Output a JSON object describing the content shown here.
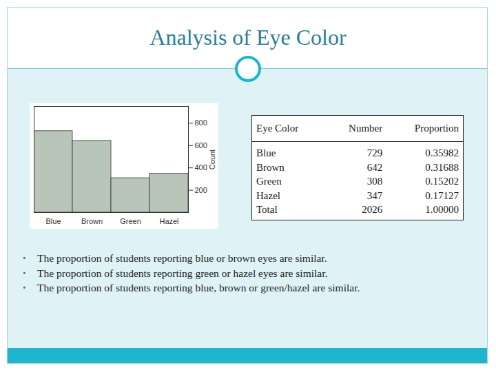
{
  "chart_data": {
    "type": "bar",
    "categories": [
      "Blue",
      "Brown",
      "Green",
      "Hazel"
    ],
    "values": [
      729,
      642,
      308,
      347
    ],
    "color": "#b9c5b9",
    "ylim": [
      0,
      950
    ],
    "yticks": [
      200,
      400,
      600,
      800
    ],
    "y_label": "Count",
    "grid": false
  },
  "slide": {
    "title": "Analysis of Eye Color",
    "table": {
      "header": [
        "Eye Color",
        "Number",
        "Proportion"
      ],
      "rows": [
        [
          "Blue",
          "729",
          "0.35982"
        ],
        [
          "Brown",
          "642",
          "0.31688"
        ],
        [
          "Green",
          "308",
          "0.15202"
        ],
        [
          "Hazel",
          "347",
          "0.17127"
        ],
        [
          "Total",
          "2026",
          "1.00000"
        ]
      ]
    },
    "bullets": [
      "The proportion of students reporting blue or brown eyes are similar.",
      "The proportion of students reporting green or hazel eyes are similar.",
      "The proportion of students reporting blue, brown or green/hazel are similar."
    ]
  }
}
